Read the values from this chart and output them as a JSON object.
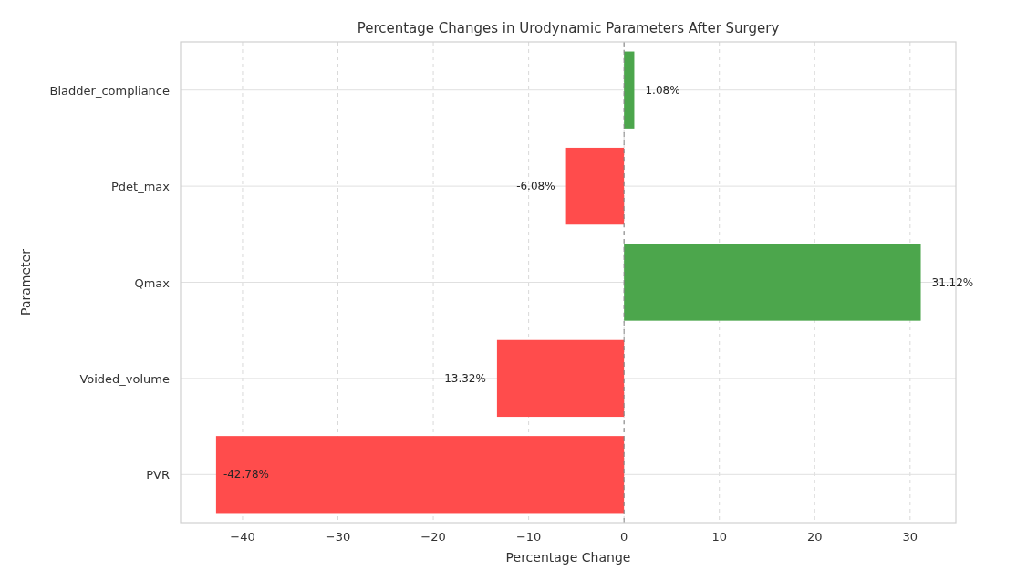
{
  "chart_data": {
    "type": "bar",
    "orientation": "horizontal",
    "title": "Percentage Changes in Urodynamic Parameters After Surgery",
    "xlabel": "Percentage Change",
    "ylabel": "Parameter",
    "categories": [
      "Bladder_compliance",
      "Pdet_max",
      "Qmax",
      "Voided_volume",
      "PVR"
    ],
    "values": [
      1.08,
      -6.08,
      31.12,
      -13.32,
      -42.78
    ],
    "colors": [
      "#4ca64c",
      "#ff4c4c",
      "#4ca64c",
      "#ff4c4c",
      "#ff4c4c"
    ],
    "value_labels": [
      "1.08%",
      "-6.08%",
      "31.12%",
      "-13.32%",
      "-42.78%"
    ],
    "xlim": [
      -46.5,
      34.8
    ],
    "xticks": [
      {
        "value": -40,
        "label": "−40"
      },
      {
        "value": -30,
        "label": "−30"
      },
      {
        "value": -20,
        "label": "−20"
      },
      {
        "value": -10,
        "label": "−10"
      },
      0,
      10,
      20,
      30
    ],
    "ref_lines": [
      {
        "axis": "x",
        "value": 0,
        "color": "#808080",
        "line_style": "dashed"
      }
    ],
    "grid": true
  }
}
